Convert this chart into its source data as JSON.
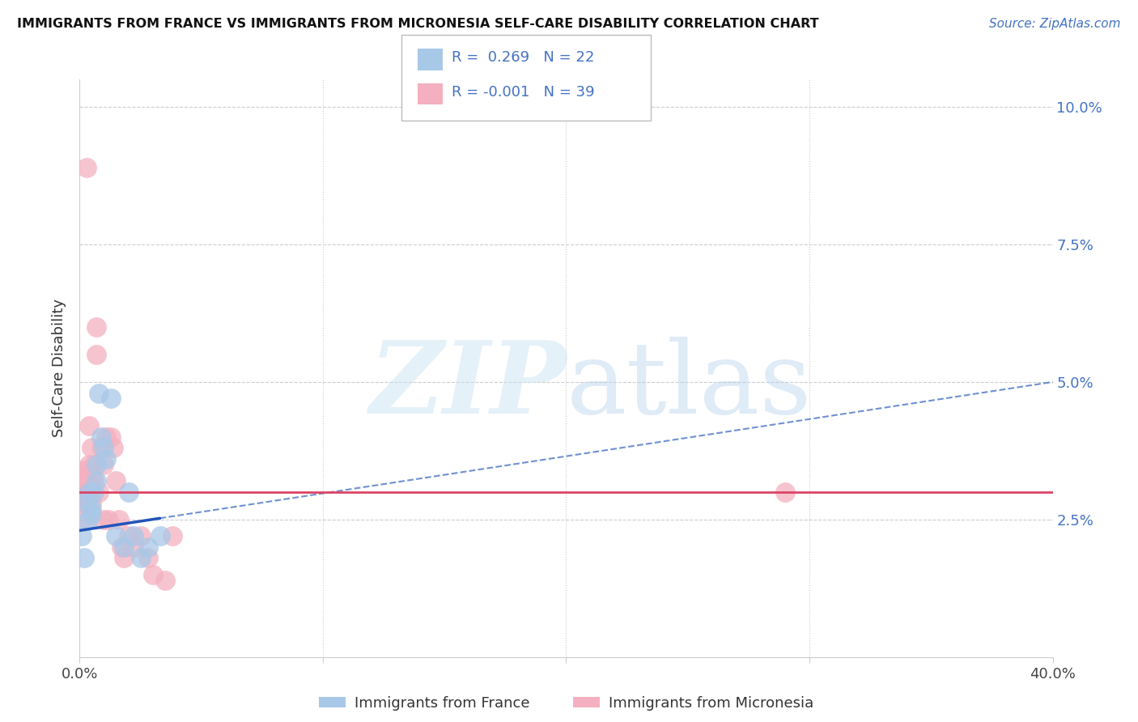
{
  "title": "IMMIGRANTS FROM FRANCE VS IMMIGRANTS FROM MICRONESIA SELF-CARE DISABILITY CORRELATION CHART",
  "source": "Source: ZipAtlas.com",
  "ylabel": "Self-Care Disability",
  "legend_label1": "Immigrants from France",
  "legend_label2": "Immigrants from Micronesia",
  "r1": 0.269,
  "n1": 22,
  "r2": -0.001,
  "n2": 39,
  "color_france": "#a8c8e8",
  "color_micronesia": "#f4b0c0",
  "color_france_line": "#2255bb",
  "color_micronesia_line": "#dd4466",
  "xlim": [
    0.0,
    0.4
  ],
  "ylim": [
    0.0,
    0.105
  ],
  "france_x": [
    0.001,
    0.002,
    0.003,
    0.0035,
    0.004,
    0.005,
    0.005,
    0.006,
    0.007,
    0.007,
    0.008,
    0.009,
    0.01,
    0.011,
    0.013,
    0.015,
    0.018,
    0.02,
    0.022,
    0.025,
    0.028,
    0.033
  ],
  "france_y": [
    0.022,
    0.018,
    0.028,
    0.025,
    0.03,
    0.027,
    0.026,
    0.03,
    0.032,
    0.035,
    0.048,
    0.04,
    0.038,
    0.036,
    0.047,
    0.022,
    0.02,
    0.03,
    0.022,
    0.018,
    0.02,
    0.022
  ],
  "micronesia_x": [
    0.001,
    0.001,
    0.002,
    0.002,
    0.002,
    0.003,
    0.003,
    0.003,
    0.004,
    0.004,
    0.004,
    0.005,
    0.005,
    0.005,
    0.006,
    0.006,
    0.007,
    0.007,
    0.008,
    0.009,
    0.01,
    0.01,
    0.011,
    0.012,
    0.013,
    0.014,
    0.015,
    0.016,
    0.017,
    0.018,
    0.02,
    0.022,
    0.025,
    0.028,
    0.03,
    0.035,
    0.038,
    0.29,
    0.003
  ],
  "micronesia_y": [
    0.03,
    0.028,
    0.034,
    0.032,
    0.028,
    0.033,
    0.03,
    0.025,
    0.035,
    0.03,
    0.042,
    0.033,
    0.038,
    0.028,
    0.035,
    0.032,
    0.055,
    0.06,
    0.03,
    0.038,
    0.035,
    0.025,
    0.04,
    0.025,
    0.04,
    0.038,
    0.032,
    0.025,
    0.02,
    0.018,
    0.022,
    0.02,
    0.022,
    0.018,
    0.015,
    0.014,
    0.022,
    0.03,
    0.089
  ],
  "yticks": [
    0.0,
    0.025,
    0.05,
    0.075,
    0.1
  ],
  "ytick_labels": [
    "",
    "2.5%",
    "5.0%",
    "7.5%",
    "10.0%"
  ],
  "xtick_positions": [
    0.0,
    0.1,
    0.2,
    0.3,
    0.4
  ],
  "xtick_labels": [
    "0.0%",
    "",
    "",
    "",
    "40.0%"
  ]
}
